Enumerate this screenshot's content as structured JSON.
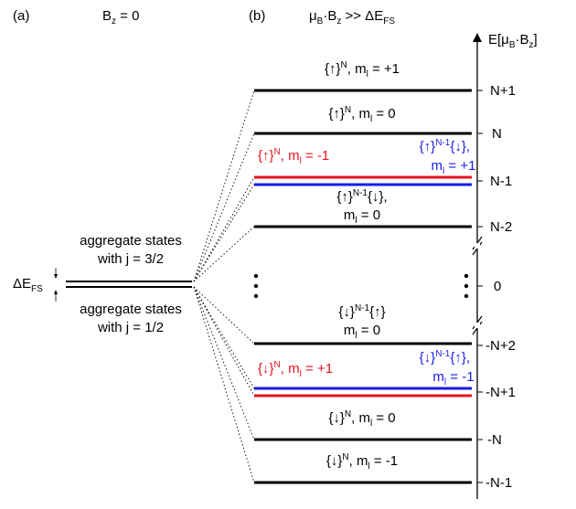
{
  "panels": {
    "a_label": "(a)",
    "a_condition": {
      "base": "B",
      "sub": "z",
      "rest": " = 0"
    },
    "b_label": "(b)",
    "b_condition": {
      "mu": "μ",
      "mu_sub": "B",
      "dot": "·B",
      "b_sub": "z",
      "rest": " >> ΔE",
      "e_sub": "FS"
    }
  },
  "left": {
    "upper_label_line1": "aggregate states",
    "upper_label_line2": "with j = 3/2",
    "lower_label_line1": "aggregate states",
    "lower_label_line2": "with j = 1/2",
    "splitting": {
      "base": "ΔE",
      "sub": "FS"
    }
  },
  "axis": {
    "label": {
      "base": "E[μ",
      "sub1": "B",
      "mid": "·B",
      "sub2": "z",
      "end": "]"
    },
    "ticks": [
      "N+1",
      "N",
      "N-1",
      "N-2",
      "0",
      "-N+2",
      "-N+1",
      "-N",
      "-N-1"
    ]
  },
  "levels": {
    "s1": {
      "a": "{↑}",
      "sup": "N",
      "b": ", m",
      "sub": "l",
      "c": " = +1"
    },
    "s2": {
      "a": "{↑}",
      "sup": "N",
      "b": ", m",
      "sub": "l",
      "c": " = 0"
    },
    "s3_red": {
      "a": "{↑}",
      "sup": "N",
      "b": ", m",
      "sub": "l",
      "c": " = -1"
    },
    "s3_blue": {
      "line1_a": "{↑}",
      "sup": "N-1",
      "line1_b": "{↓},",
      "line2_a": "m",
      "sub": "l",
      "line2_b": " = +1"
    },
    "s4": {
      "line1_a": "{↑}",
      "sup": "N-1",
      "line1_b": "{↓},",
      "line2_a": "m",
      "sub": "l",
      "line2_b": " = 0"
    },
    "s5": {
      "line1_a": "{↓}",
      "sup": "N-1",
      "line1_b": "{↑}",
      "line2_a": "m",
      "sub": "l",
      "line2_b": " = 0"
    },
    "s6_red": {
      "a": "{↓}",
      "sup": "N",
      "b": ", m",
      "sub": "l",
      "c": " = +1"
    },
    "s6_blue": {
      "line1_a": "{↓}",
      "sup": "N-1",
      "line1_b": "{↑},",
      "line2_a": "m",
      "sub": "l",
      "line2_b": " = -1"
    },
    "s7": {
      "a": "{↓}",
      "sup": "N",
      "b": ", m",
      "sub": "l",
      "c": " = 0"
    },
    "s8": {
      "a": "{↓}",
      "sup": "N",
      "b": ", m",
      "sub": "l",
      "c": " = -1"
    }
  },
  "colors": {
    "red": "#e8141e",
    "blue": "#1a1ae6",
    "black": "#000000"
  }
}
